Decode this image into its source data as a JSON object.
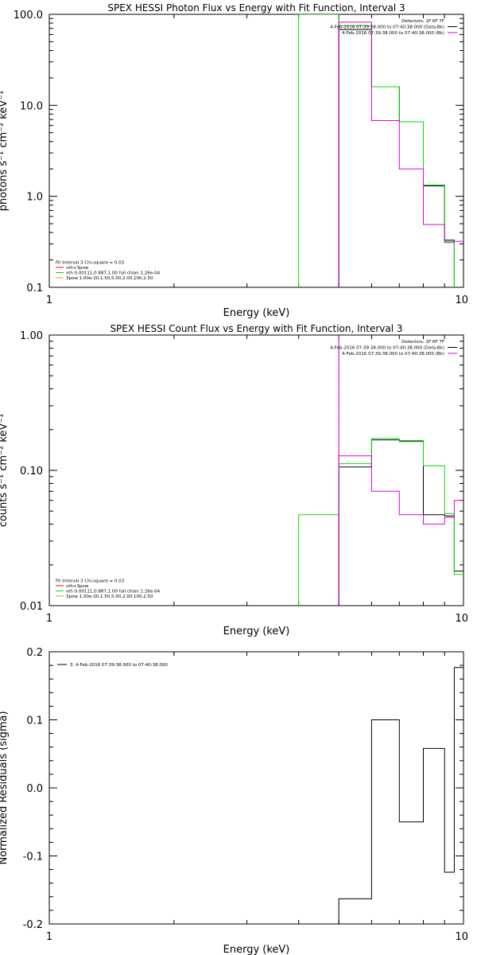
{
  "colors": {
    "black": "#000000",
    "green": "#00e000",
    "magenta": "#e000e0",
    "orange": "#e0a000",
    "red": "#ff0000"
  },
  "chart_data": [
    {
      "id": "photon",
      "type": "line",
      "title": "SPEX HESSI Photon Flux vs Energy with Fit Function, Interval 3",
      "xlabel": "Energy (keV)",
      "ylabel": "photons s⁻¹ cm⁻² keV⁻¹",
      "xscale": "log",
      "yscale": "log",
      "xlim": [
        1,
        10
      ],
      "ylim": [
        0.1,
        100
      ],
      "xticks": [
        {
          "v": 1,
          "label": "1"
        },
        {
          "v": 10,
          "label": "10"
        }
      ],
      "yticks": [
        {
          "v": 0.1,
          "label": "0.1"
        },
        {
          "v": 1,
          "label": "1.0"
        },
        {
          "v": 10,
          "label": "10.0"
        },
        {
          "v": 100,
          "label": "100.0"
        }
      ],
      "legend_tr": [
        {
          "text": "Detectors: 1F 6F 7F",
          "color": ""
        },
        {
          "text": "4-Feb-2016 07:39:38.000 to 07:40:38.000 (Data-Bk)",
          "color": "#000000"
        },
        {
          "text": "4-Feb-2016 07:39:38.000 to 07:40:38.000 (Bk)",
          "color": "#e000e0"
        }
      ],
      "legend_bl": [
        {
          "text": "Fit Interval 3   Chi-square = 0.03",
          "color": ""
        },
        {
          "text": "vth+3pow",
          "color": "#ff0000"
        },
        {
          "text": "vth 0.00111,0.887,1.00  full chian 1.26e-04",
          "color": "#00e000"
        },
        {
          "text": "3pow 1.00e-20,1.50,5.00,2.00,100,2.50",
          "color": "#e0a000"
        }
      ],
      "series": [
        {
          "color": "#000000",
          "points": [
            [
              5,
              0.1
            ],
            [
              5,
              68
            ],
            [
              6,
              68
            ],
            [
              6,
              16
            ],
            [
              7,
              16
            ],
            [
              7,
              6.6
            ],
            [
              8,
              6.6
            ],
            [
              8,
              1.3
            ],
            [
              9,
              1.3
            ],
            [
              9,
              0.33
            ],
            [
              9.5,
              0.33
            ],
            [
              9.5,
              0.097
            ],
            [
              10,
              0.097
            ]
          ]
        },
        {
          "color": "#00e000",
          "points": [
            [
              4,
              0.1
            ],
            [
              4,
              120
            ],
            [
              5,
              120
            ],
            [
              5,
              75
            ],
            [
              6,
              75
            ],
            [
              6,
              16
            ],
            [
              7,
              16
            ],
            [
              7,
              6.6
            ],
            [
              8,
              6.6
            ],
            [
              8,
              1.33
            ],
            [
              9,
              1.33
            ],
            [
              9,
              0.32
            ],
            [
              9.5,
              0.32
            ],
            [
              9.5,
              0.1
            ]
          ]
        },
        {
          "color": "#e000e0",
          "points": [
            [
              5,
              0.1
            ],
            [
              5,
              82
            ],
            [
              6,
              82
            ],
            [
              6,
              6.8
            ],
            [
              7,
              6.8
            ],
            [
              7,
              2
            ],
            [
              8,
              2
            ],
            [
              8,
              0.49
            ],
            [
              9,
              0.49
            ],
            [
              9,
              0.31
            ],
            [
              9.5,
              0.31
            ],
            [
              9.5,
              0.32
            ],
            [
              10,
              0.32
            ]
          ]
        }
      ],
      "vlines": [
        {
          "x": 5,
          "color": "#000000"
        }
      ]
    },
    {
      "id": "count",
      "type": "line",
      "title": "SPEX HESSI Count Flux vs Energy with Fit Function, Interval 3",
      "xlabel": "Energy (keV)",
      "ylabel": "counts s⁻¹ cm⁻² keV⁻¹",
      "xscale": "log",
      "yscale": "log",
      "xlim": [
        1,
        10
      ],
      "ylim": [
        0.01,
        1
      ],
      "xticks": [
        {
          "v": 1,
          "label": "1"
        },
        {
          "v": 10,
          "label": "10"
        }
      ],
      "yticks": [
        {
          "v": 0.01,
          "label": "0.01"
        },
        {
          "v": 0.1,
          "label": "0.10"
        },
        {
          "v": 1,
          "label": "1.00"
        }
      ],
      "legend_tr": [
        {
          "text": "Detectors: 1F 6F 7F",
          "color": ""
        },
        {
          "text": "4-Feb-2016 07:39:38.000 to 07:40:38.000 (Data-Bk)",
          "color": "#000000"
        },
        {
          "text": "4-Feb-2016 07:39:38.000 to 07:40:38.000 (Bk)",
          "color": "#e000e0"
        }
      ],
      "legend_bl": [
        {
          "text": "Fit Interval 3   Chi-square = 0.03",
          "color": ""
        },
        {
          "text": "vth+3pow",
          "color": "#ff0000"
        },
        {
          "text": "vth 0.00111,0.887,1.00  full chian 1.26e-04",
          "color": "#00e000"
        },
        {
          "text": "3pow 1.00e-20,1.50,5.00,2.00,100,2.50",
          "color": "#e0a000"
        }
      ],
      "series": [
        {
          "color": "#000000",
          "points": [
            [
              5,
              0.01
            ],
            [
              5,
              0.106
            ],
            [
              6,
              0.106
            ],
            [
              6,
              0.168
            ],
            [
              7,
              0.168
            ],
            [
              7,
              0.165
            ],
            [
              8,
              0.165
            ],
            [
              8,
              0.047
            ],
            [
              9,
              0.047
            ],
            [
              9,
              0.046
            ],
            [
              9.5,
              0.046
            ],
            [
              9.5,
              0.018
            ],
            [
              10,
              0.018
            ]
          ]
        },
        {
          "color": "#00e000",
          "points": [
            [
              4,
              0.01
            ],
            [
              4,
              0.047
            ],
            [
              5,
              0.047
            ],
            [
              5,
              0.112
            ],
            [
              6,
              0.112
            ],
            [
              6,
              0.172
            ],
            [
              7,
              0.172
            ],
            [
              7,
              0.163
            ],
            [
              8,
              0.163
            ],
            [
              8,
              0.108
            ],
            [
              9,
              0.108
            ],
            [
              9,
              0.048
            ],
            [
              9.5,
              0.048
            ],
            [
              9.5,
              0.017
            ],
            [
              10,
              0.017
            ]
          ]
        },
        {
          "color": "#e000e0",
          "points": [
            [
              5,
              0.01
            ],
            [
              5,
              0.128
            ],
            [
              6,
              0.128
            ],
            [
              6,
              0.07
            ],
            [
              7,
              0.07
            ],
            [
              7,
              0.047
            ],
            [
              8,
              0.047
            ],
            [
              8,
              0.04
            ],
            [
              9,
              0.04
            ],
            [
              9,
              0.045
            ],
            [
              9.5,
              0.045
            ],
            [
              9.5,
              0.06
            ],
            [
              10,
              0.06
            ]
          ]
        }
      ],
      "vlines": [
        {
          "x": 5,
          "color": "#000000",
          "dotted": true
        },
        {
          "x": 5,
          "color": "#e000e0"
        }
      ]
    },
    {
      "id": "resid",
      "type": "line",
      "title": "",
      "xlabel": "Energy (keV)",
      "ylabel": "Normalized Residuals (sigma)",
      "xscale": "log",
      "yscale": "linear",
      "xlim": [
        1,
        10
      ],
      "ylim": [
        -0.2,
        0.2
      ],
      "xticks": [
        {
          "v": 1,
          "label": "1"
        },
        {
          "v": 10,
          "label": "10"
        }
      ],
      "yticks": [
        {
          "v": -0.2,
          "label": "-0.2"
        },
        {
          "v": -0.1,
          "label": "-0.1"
        },
        {
          "v": 0,
          "label": "0.0"
        },
        {
          "v": 0.1,
          "label": "0.1"
        },
        {
          "v": 0.2,
          "label": "0.2"
        }
      ],
      "legend_tr": [],
      "legend_tl": [
        {
          "text": "3.  4-Feb-2016 07:39:38.000 to 07:40:38.000",
          "color": "#000000"
        }
      ],
      "legend_bl": [],
      "series": [
        {
          "color": "#000000",
          "points": [
            [
              5,
              -0.2
            ],
            [
              5,
              -0.163
            ],
            [
              6,
              -0.163
            ],
            [
              6,
              0.1
            ],
            [
              7,
              0.1
            ],
            [
              7,
              -0.05
            ],
            [
              8,
              -0.05
            ],
            [
              8,
              0.058
            ],
            [
              9,
              0.058
            ],
            [
              9,
              -0.124
            ],
            [
              9.5,
              -0.124
            ],
            [
              9.5,
              0.177
            ],
            [
              10,
              0.177
            ]
          ]
        }
      ],
      "vlines": []
    }
  ]
}
